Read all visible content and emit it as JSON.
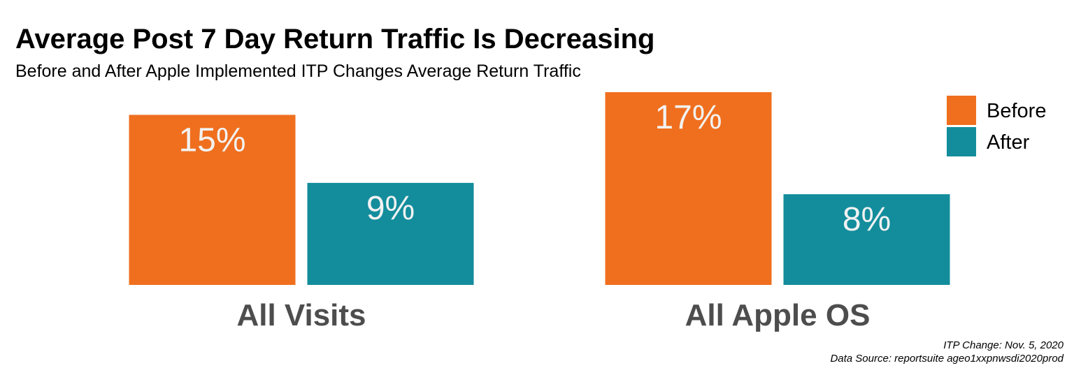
{
  "chart_data": {
    "type": "bar",
    "title": "Average Post 7 Day Return Traffic Is Decreasing",
    "subtitle": "Before and After Apple Implemented ITP Changes Average Return Traffic",
    "categories": [
      "All Visits",
      "All Apple OS"
    ],
    "series": [
      {
        "name": "Before",
        "color": "#EF6F1E",
        "values": [
          15,
          17
        ],
        "labels": [
          "15%",
          "17%"
        ]
      },
      {
        "name": "After",
        "color": "#138D9C",
        "values": [
          9,
          8
        ],
        "labels": [
          "9%",
          "8%"
        ]
      }
    ],
    "ylim": [
      0,
      17
    ],
    "xlabel": "",
    "ylabel": "",
    "grid": false,
    "legend_position": "top-right",
    "caption": [
      "ITP Change: Nov. 5, 2020",
      "Data Source: reportsuite ageo1xxpnwsdi2020prod"
    ]
  }
}
